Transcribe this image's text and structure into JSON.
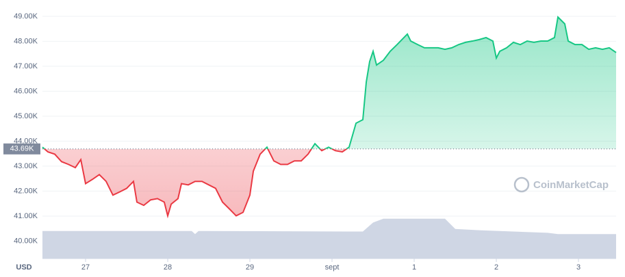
{
  "chart_data": {
    "type": "line",
    "x": [
      -0.525,
      -0.458,
      -0.375,
      -0.292,
      -0.208,
      -0.125,
      -0.058,
      0,
      0.083,
      0.167,
      0.25,
      0.333,
      0.417,
      0.5,
      0.583,
      0.625,
      0.708,
      0.792,
      0.875,
      0.958,
      1,
      1.042,
      1.125,
      1.167,
      1.25,
      1.333,
      1.417,
      1.5,
      1.583,
      1.667,
      1.75,
      1.833,
      1.917,
      2,
      2.042,
      2.125,
      2.208,
      2.292,
      2.375,
      2.458,
      2.542,
      2.625,
      2.708,
      2.792,
      2.875,
      2.958,
      3.042,
      3.125,
      3.208,
      3.292,
      3.375,
      3.417,
      3.458,
      3.5,
      3.542,
      3.625,
      3.708,
      3.792,
      3.875,
      3.917,
      3.958,
      4.042,
      4.125,
      4.208,
      4.292,
      4.375,
      4.458,
      4.542,
      4.625,
      4.708,
      4.792,
      4.875,
      4.958,
      5,
      5.042,
      5.125,
      5.208,
      5.292,
      5.375,
      5.458,
      5.542,
      5.625,
      5.708,
      5.75,
      5.833,
      5.875,
      5.958,
      6.042,
      6.125,
      6.208,
      6.292,
      6.375,
      6.458
    ],
    "values": [
      43.76,
      43.57,
      43.48,
      43.18,
      43.07,
      42.94,
      43.26,
      42.3,
      42.47,
      42.66,
      42.39,
      41.84,
      41.97,
      42.11,
      42.39,
      41.56,
      41.43,
      41.65,
      41.7,
      41.56,
      41.01,
      41.48,
      41.7,
      42.3,
      42.25,
      42.39,
      42.39,
      42.25,
      42.11,
      41.56,
      41.29,
      41.01,
      41.15,
      41.84,
      42.8,
      43.48,
      43.76,
      43.21,
      43.07,
      43.07,
      43.21,
      43.21,
      43.48,
      43.9,
      43.62,
      43.76,
      43.62,
      43.57,
      43.76,
      44.72,
      44.86,
      46.37,
      47.19,
      47.6,
      47.05,
      47.24,
      47.6,
      47.87,
      48.15,
      48.29,
      48.01,
      47.87,
      47.74,
      47.74,
      47.74,
      47.68,
      47.74,
      47.87,
      47.96,
      48.01,
      48.07,
      48.15,
      48.01,
      47.33,
      47.6,
      47.74,
      47.96,
      47.87,
      48.01,
      47.96,
      48.01,
      48.01,
      48.15,
      48.97,
      48.7,
      48.01,
      47.87,
      47.87,
      47.68,
      47.74,
      47.68,
      47.74,
      47.55
    ],
    "color_above": "#16c784",
    "color_below": "#ea3943",
    "baseline": {
      "value": 43.69,
      "label": "43.69K"
    },
    "xlim": [
      -0.525,
      6.458
    ],
    "xticks": [
      {
        "value": 0,
        "label": "27"
      },
      {
        "value": 1,
        "label": "28"
      },
      {
        "value": 2,
        "label": "29"
      },
      {
        "value": 3,
        "label": "sept"
      },
      {
        "value": 4,
        "label": "1"
      },
      {
        "value": 5,
        "label": "2"
      },
      {
        "value": 6,
        "label": "3"
      }
    ],
    "x_label": "USD",
    "ylim": [
      39.3,
      49.6
    ],
    "yticks": [
      {
        "value": 40,
        "label": "40.00K"
      },
      {
        "value": 41,
        "label": "41.00K"
      },
      {
        "value": 42,
        "label": "42.00K"
      },
      {
        "value": 43,
        "label": "43.00K"
      },
      {
        "value": 44,
        "label": "44.00K"
      },
      {
        "value": 45,
        "label": "45.00K"
      },
      {
        "value": 46,
        "label": "46.00K"
      },
      {
        "value": 47,
        "label": "47.00K"
      },
      {
        "value": 48,
        "label": "48.00K"
      },
      {
        "value": 49,
        "label": "49.00K"
      }
    ],
    "grid": true,
    "volume": {
      "x": [
        -0.525,
        1.292,
        1.333,
        1.375,
        3.375,
        3.5,
        3.625,
        4.375,
        4.5,
        4.792,
        5.625,
        5.75,
        6.458
      ],
      "values": [
        1.07,
        1.07,
        0.95,
        1.07,
        1.05,
        1.4,
        1.55,
        1.55,
        1.15,
        1.1,
        1.0,
        0.95,
        0.95
      ],
      "color": "#cfd6e4"
    },
    "y2lim": [
      0,
      10
    ],
    "watermark": "CoinMarketCap"
  }
}
